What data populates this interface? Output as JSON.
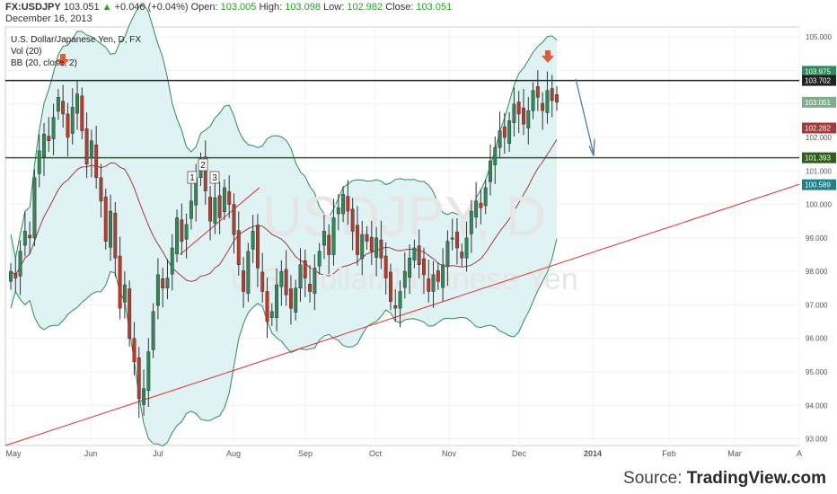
{
  "header": {
    "symbol": "FX:USDJPY",
    "last": "103.051",
    "change": "+0.046 (+0.04%)",
    "open_label": "Open:",
    "open": "103.005",
    "high_label": "High:",
    "high": "103.098",
    "low_label": "Low:",
    "low": "102.982",
    "close_label": "Close:",
    "close": "103.051",
    "date": "December 16, 2013"
  },
  "legend": {
    "title": "U.S. Dollar/Japanese Yen, D, FX",
    "vol": "Vol (20)",
    "bb": "BB (20, close, 2)"
  },
  "watermark": {
    "line1": "USDJPY, D",
    "line2": "U.S. Dollar/Japanese Yen"
  },
  "source": {
    "prefix": "Source:",
    "brand": "TradingView.com"
  },
  "colors": {
    "up_candle": "#2e8b57",
    "down_candle": "#c0392b",
    "band_fill": "#dff2f4",
    "band_line": "#2e8b57",
    "basis_line": "#a23b3b",
    "trendline": "#e03030",
    "resistance": "#222222",
    "support": "#2f5d1a",
    "arrow_down": "#e25a3a",
    "projection": "#4a7fb5"
  },
  "chart_data": {
    "type": "candlestick",
    "symbol": "USDJPY",
    "timeframe": "D",
    "ylim": [
      92.8,
      105.3
    ],
    "y_ticks": [
      93,
      94,
      95,
      96,
      97,
      98,
      99,
      100,
      101,
      102,
      103,
      104,
      105
    ],
    "y_tick_labels": [
      "93.000",
      "94.000",
      "95.000",
      "96.000",
      "97.000",
      "98.000",
      "99.000",
      "100.000",
      "101.000",
      "102.000",
      "103.000",
      "104.000",
      "105.000"
    ],
    "x_labels": [
      "May",
      "Jun",
      "Jul",
      "Aug",
      "Sep",
      "Oct",
      "Nov",
      "Dec",
      "2014",
      "Feb",
      "Mar",
      "A"
    ],
    "closes": [
      98.0,
      97.8,
      98.6,
      99.2,
      99.0,
      100.8,
      101.6,
      102.1,
      101.9,
      102.6,
      103.2,
      102.7,
      102.0,
      102.9,
      103.3,
      102.2,
      101.2,
      101.9,
      100.8,
      100.1,
      98.9,
      99.8,
      98.4,
      96.9,
      97.6,
      96.0,
      95.3,
      94.2,
      94.5,
      95.6,
      96.8,
      97.9,
      97.5,
      97.8,
      98.7,
      99.6,
      98.9,
      99.4,
      100.1,
      100.8,
      101.3,
      100.4,
      99.5,
      100.2,
      99.6,
      100.5,
      100.0,
      99.1,
      98.2,
      97.4,
      98.6,
      99.2,
      98.1,
      97.4,
      96.5,
      96.8,
      97.6,
      98.0,
      97.3,
      96.9,
      97.5,
      98.2,
      97.8,
      97.4,
      98.1,
      98.6,
      99.2,
      98.5,
      99.6,
      99.9,
      100.3,
      99.8,
      99.2,
      98.5,
      99.1,
      98.9,
      98.6,
      99.0,
      98.4,
      97.8,
      97.1,
      96.9,
      97.4,
      98.0,
      98.4,
      98.7,
      98.2,
      97.9,
      97.4,
      97.9,
      97.7,
      98.2,
      98.9,
      99.0,
      98.7,
      98.4,
      99.0,
      99.8,
      100.1,
      99.9,
      100.5,
      101.3,
      101.7,
      102.2,
      102.0,
      102.5,
      103.0,
      102.7,
      102.4,
      102.8,
      103.4,
      103.2,
      102.8,
      103.4,
      103.1,
      103.05
    ],
    "volume_last": "103.051",
    "price_tags": [
      {
        "value": 103.975,
        "label": "103.975",
        "color": "#2e8b57"
      },
      {
        "value": 103.702,
        "label": "103.702",
        "color": "#222222"
      },
      {
        "value": 103.051,
        "label": "103.051",
        "color": "#7fae8a"
      },
      {
        "value": 102.282,
        "label": "102.282",
        "color": "#a23b3b"
      },
      {
        "value": 101.393,
        "label": "101.393",
        "color": "#2f5d1a"
      },
      {
        "value": 100.589,
        "label": "100.589",
        "color": "#1f7f8a"
      }
    ],
    "horizontal_lines": [
      {
        "value": 103.702,
        "role": "resistance"
      },
      {
        "value": 101.393,
        "role": "support"
      }
    ],
    "trendlines": [
      {
        "name": "rising support",
        "from": [
          0,
          92.8
        ],
        "to": [
          1,
          100.6
        ]
      },
      {
        "name": "short trend",
        "from": [
          0.22,
          98.5
        ],
        "to": [
          0.32,
          100.5
        ]
      }
    ],
    "annotations": [
      "1",
      "2",
      "3"
    ]
  }
}
